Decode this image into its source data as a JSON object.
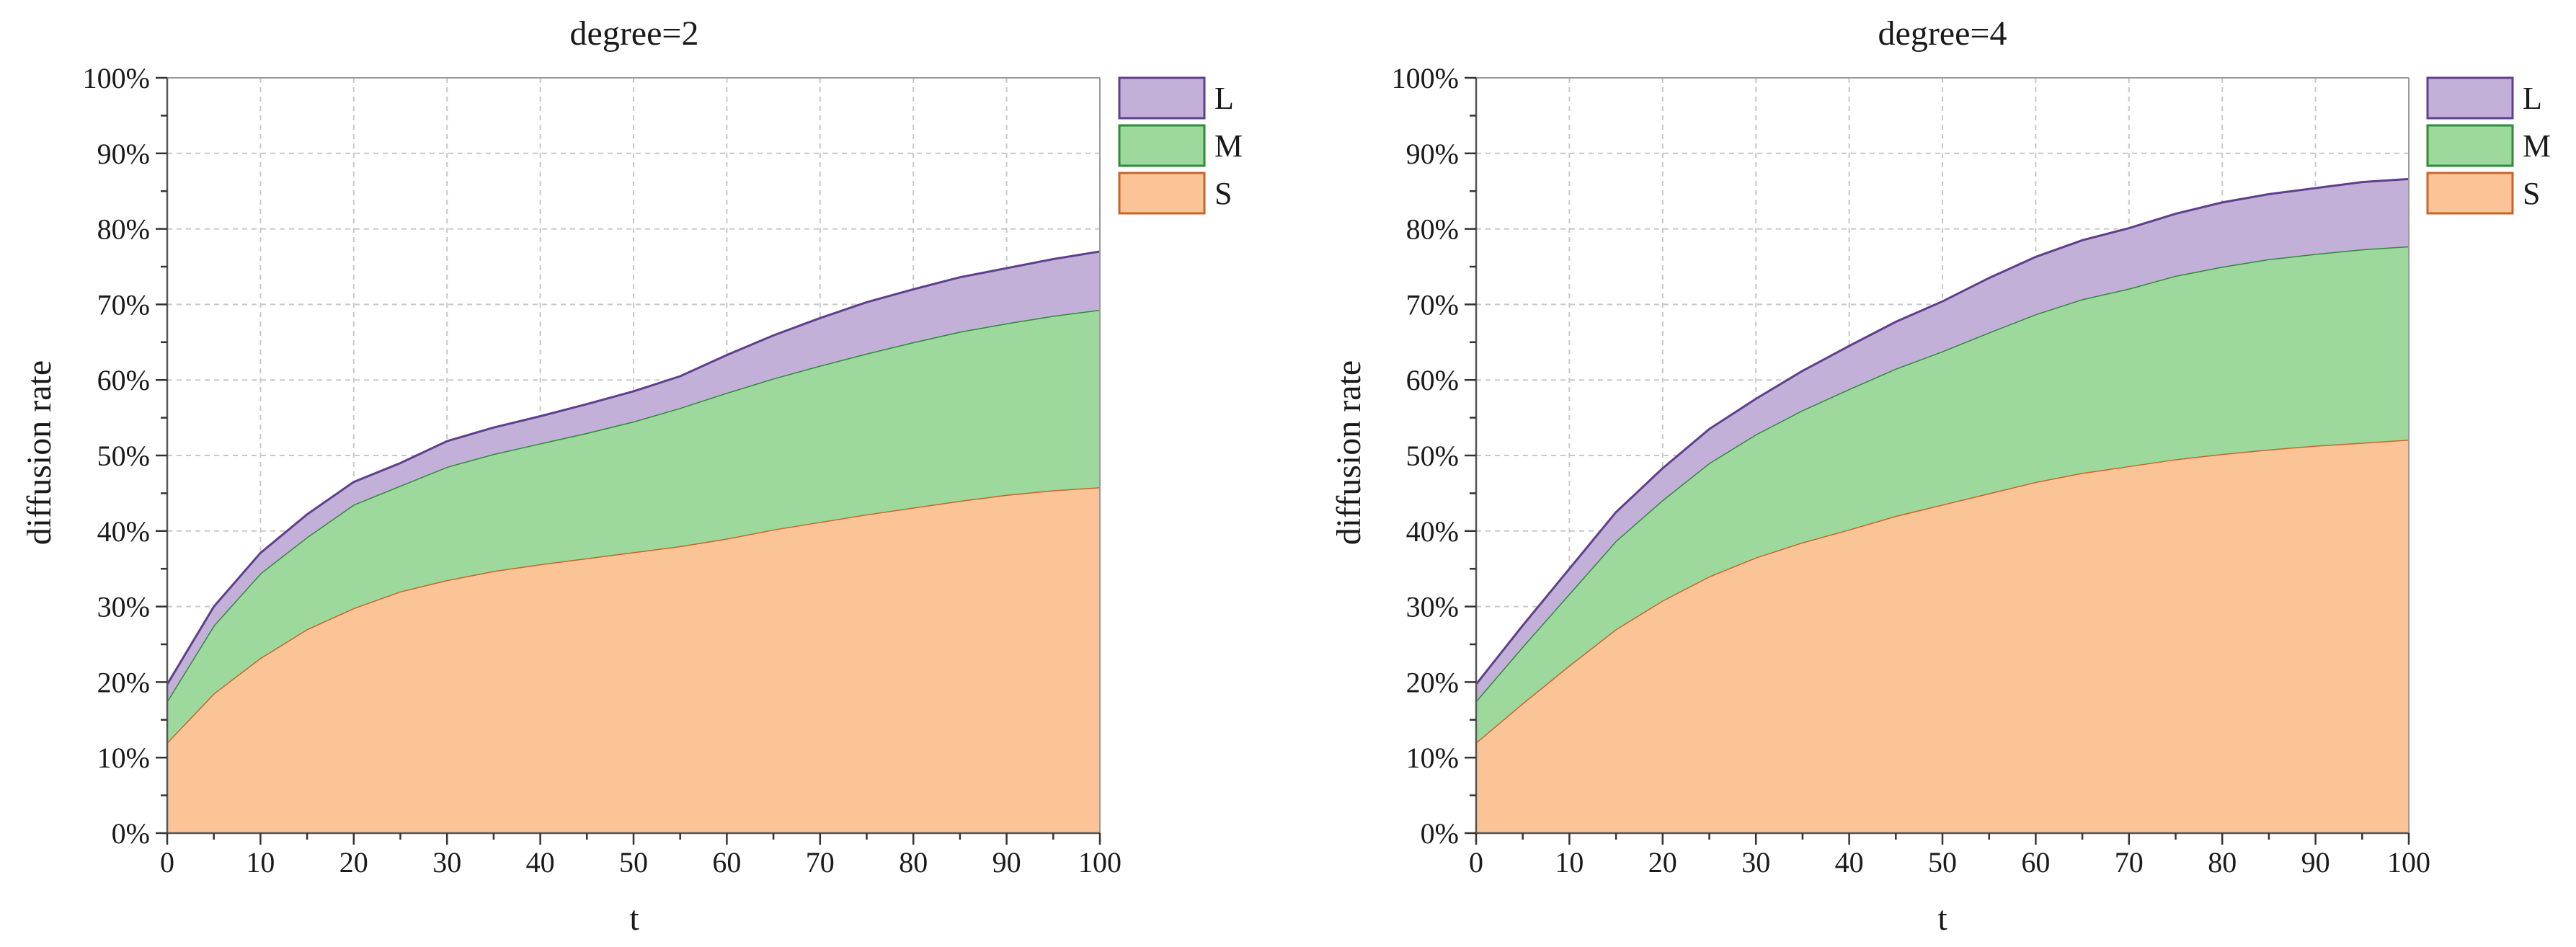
{
  "chart_data": [
    {
      "type": "area",
      "stacked": true,
      "title": "degree=2",
      "xlabel": "t",
      "ylabel": "diffusion rate",
      "xlim": [
        0,
        100
      ],
      "ylim": [
        0,
        1
      ],
      "x": [
        0,
        5,
        10,
        15,
        20,
        25,
        30,
        35,
        40,
        45,
        50,
        55,
        60,
        65,
        70,
        75,
        80,
        85,
        90,
        95,
        100
      ],
      "xticks": [
        "0",
        "10",
        "20",
        "30",
        "40",
        "50",
        "60",
        "70",
        "80",
        "90",
        "100"
      ],
      "yticks": [
        "0%",
        "10%",
        "20%",
        "30%",
        "40%",
        "50%",
        "60%",
        "70%",
        "80%",
        "90%",
        "100%"
      ],
      "grid": true,
      "legend": "top-right",
      "series": [
        {
          "name": "S",
          "fill": "#fbc497",
          "line": "#c8642a",
          "values": [
            0.12,
            0.185,
            0.232,
            0.27,
            0.298,
            0.32,
            0.335,
            0.347,
            0.356,
            0.364,
            0.372,
            0.38,
            0.39,
            0.402,
            0.412,
            0.422,
            0.431,
            0.44,
            0.448,
            0.454,
            0.458
          ]
        },
        {
          "name": "M",
          "fill": "#9dd89c",
          "line": "#2f8a3a",
          "values": [
            0.055,
            0.09,
            0.112,
            0.122,
            0.137,
            0.14,
            0.15,
            0.155,
            0.16,
            0.166,
            0.173,
            0.183,
            0.193,
            0.2,
            0.207,
            0.213,
            0.219,
            0.224,
            0.227,
            0.231,
            0.235
          ]
        },
        {
          "name": "L",
          "fill": "#c2b0d8",
          "line": "#5f3f8c",
          "values": [
            0.022,
            0.025,
            0.027,
            0.03,
            0.03,
            0.03,
            0.034,
            0.035,
            0.036,
            0.038,
            0.04,
            0.042,
            0.05,
            0.057,
            0.063,
            0.068,
            0.07,
            0.072,
            0.073,
            0.075,
            0.077
          ]
        }
      ]
    },
    {
      "type": "area",
      "stacked": true,
      "title": "degree=4",
      "xlabel": "t",
      "ylabel": "diffusion rate",
      "xlim": [
        0,
        100
      ],
      "ylim": [
        0,
        1
      ],
      "x": [
        0,
        5,
        10,
        15,
        20,
        25,
        30,
        35,
        40,
        45,
        50,
        55,
        60,
        65,
        70,
        75,
        80,
        85,
        90,
        95,
        100
      ],
      "xticks": [
        "0",
        "10",
        "20",
        "30",
        "40",
        "50",
        "60",
        "70",
        "80",
        "90",
        "100"
      ],
      "yticks": [
        "0%",
        "10%",
        "20%",
        "30%",
        "40%",
        "50%",
        "60%",
        "70%",
        "80%",
        "90%",
        "100%"
      ],
      "grid": true,
      "legend": "top-right",
      "series": [
        {
          "name": "S",
          "fill": "#fbc497",
          "line": "#c8642a",
          "values": [
            0.12,
            0.172,
            0.222,
            0.27,
            0.308,
            0.34,
            0.365,
            0.385,
            0.402,
            0.42,
            0.435,
            0.45,
            0.465,
            0.477,
            0.486,
            0.495,
            0.502,
            0.508,
            0.513,
            0.517,
            0.521
          ]
        },
        {
          "name": "M",
          "fill": "#9dd89c",
          "line": "#2f8a3a",
          "values": [
            0.055,
            0.075,
            0.095,
            0.117,
            0.133,
            0.15,
            0.163,
            0.175,
            0.186,
            0.195,
            0.203,
            0.213,
            0.222,
            0.23,
            0.235,
            0.243,
            0.248,
            0.252,
            0.254,
            0.256,
            0.256
          ]
        },
        {
          "name": "L",
          "fill": "#c2b0d8",
          "line": "#5f3f8c",
          "values": [
            0.022,
            0.028,
            0.033,
            0.038,
            0.042,
            0.045,
            0.047,
            0.052,
            0.057,
            0.062,
            0.066,
            0.072,
            0.076,
            0.078,
            0.08,
            0.082,
            0.085,
            0.086,
            0.087,
            0.089,
            0.089
          ]
        }
      ]
    }
  ]
}
